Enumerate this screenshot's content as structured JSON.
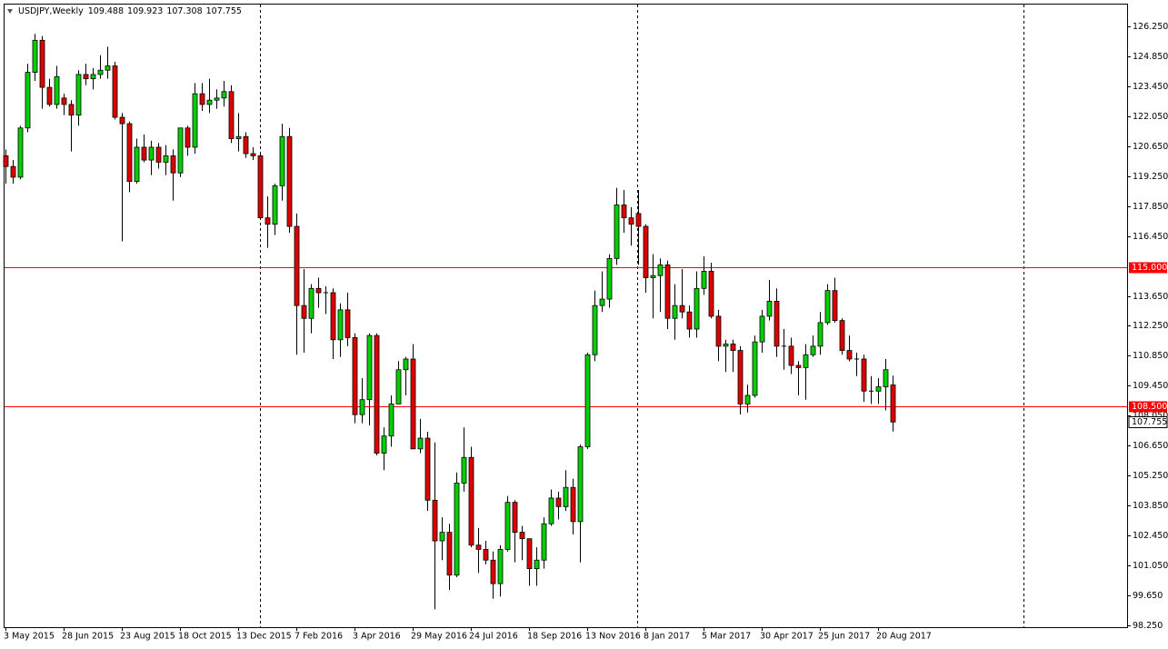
{
  "chart_data": {
    "type": "candlestick",
    "title": "USDJPY,Weekly",
    "categories": [
      "3 May 2015",
      null,
      null,
      null,
      null,
      null,
      null,
      null,
      "28 Jun 2015",
      null,
      null,
      null,
      null,
      null,
      null,
      null,
      "23 Aug 2015",
      null,
      null,
      null,
      null,
      null,
      null,
      null,
      "18 Oct 2015",
      null,
      null,
      null,
      null,
      null,
      null,
      null,
      "13 Dec 2015",
      null,
      null,
      null,
      null,
      null,
      null,
      null,
      "7 Feb 2016",
      null,
      null,
      null,
      null,
      null,
      null,
      null,
      "3 Apr 2016",
      null,
      null,
      null,
      null,
      null,
      null,
      null,
      "29 May 2016",
      null,
      null,
      null,
      null,
      null,
      null,
      null,
      "24 Jul 2016",
      null,
      null,
      null,
      null,
      null,
      null,
      null,
      "18 Sep 2016",
      null,
      null,
      null,
      null,
      null,
      null,
      null,
      "13 Nov 2016",
      null,
      null,
      null,
      null,
      null,
      null,
      null,
      "8 Jan 2017",
      null,
      null,
      null,
      null,
      null,
      null,
      null,
      "5 Mar 2017",
      null,
      null,
      null,
      null,
      null,
      null,
      null,
      "30 Apr 2017",
      null,
      null,
      null,
      null,
      null,
      null,
      null,
      "25 Jun 2017",
      null,
      null,
      null,
      null,
      null,
      null,
      null,
      "20 Aug 2017",
      null,
      null
    ],
    "open": [
      120.2,
      119.7,
      119.2,
      121.5,
      124.1,
      125.6,
      123.4,
      122.6,
      122.9,
      122.6,
      122.1,
      124.0,
      123.8,
      124.0,
      124.2,
      124.4,
      122.0,
      121.7,
      119.0,
      120.6,
      120.0,
      120.6,
      119.9,
      120.2,
      119.4,
      121.5,
      120.6,
      123.1,
      122.6,
      122.8,
      122.9,
      123.2,
      121.0,
      121.1,
      120.3,
      120.2,
      117.3,
      117.0,
      118.8,
      121.1,
      116.9,
      113.2,
      112.6,
      114.0,
      113.8,
      113.8,
      111.6,
      113.0,
      111.7,
      108.1,
      108.8,
      111.8,
      106.3,
      107.1,
      108.6,
      110.2,
      110.7,
      106.5,
      107.0,
      104.1,
      102.2,
      102.6,
      100.6,
      104.9,
      106.1,
      102.0,
      101.8,
      101.3,
      100.2,
      101.8,
      104.0,
      102.6,
      102.3,
      100.9,
      101.3,
      103.0,
      104.2,
      103.8,
      104.7,
      103.1,
      106.6,
      110.9,
      113.2,
      113.5,
      115.4,
      117.9,
      117.3,
      117.5,
      116.9,
      114.5,
      114.6,
      115.1,
      112.6,
      113.2,
      112.9,
      112.1,
      114.0,
      114.8,
      112.7,
      111.3,
      111.4,
      111.1,
      108.6,
      109.0,
      111.5,
      112.7,
      113.4,
      111.3,
      111.3,
      110.4,
      110.3,
      110.9,
      111.3,
      112.4,
      113.9,
      112.5,
      111.1,
      110.7,
      110.7,
      109.2,
      109.2,
      109.4,
      109.488
    ],
    "high": [
      120.5,
      120.0,
      121.6,
      124.5,
      125.9,
      125.8,
      123.8,
      124.4,
      123.1,
      122.8,
      124.2,
      124.5,
      124.3,
      124.9,
      125.3,
      124.6,
      122.2,
      121.8,
      121.0,
      121.2,
      120.9,
      120.8,
      120.7,
      120.5,
      121.5,
      121.6,
      123.6,
      123.6,
      123.8,
      123.3,
      123.7,
      123.5,
      122.2,
      121.3,
      120.6,
      120.3,
      118.3,
      118.9,
      121.7,
      121.5,
      117.5,
      114.9,
      114.2,
      114.5,
      114.1,
      114.0,
      113.3,
      113.8,
      111.9,
      109.8,
      111.9,
      111.9,
      107.5,
      109.0,
      110.6,
      110.8,
      111.4,
      107.9,
      107.3,
      106.8,
      103.3,
      103.0,
      105.4,
      107.5,
      106.6,
      102.8,
      102.2,
      101.7,
      102.0,
      104.3,
      104.1,
      102.9,
      102.3,
      101.9,
      103.3,
      104.6,
      104.5,
      105.5,
      105.1,
      106.7,
      111.0,
      113.9,
      114.8,
      115.6,
      118.7,
      118.6,
      117.8,
      118.6,
      117.0,
      115.6,
      115.4,
      115.3,
      114.2,
      114.9,
      113.2,
      114.8,
      115.5,
      115.2,
      113.0,
      111.6,
      111.6,
      111.3,
      109.5,
      111.8,
      113.0,
      114.4,
      114.0,
      112.1,
      111.7,
      110.6,
      111.4,
      111.8,
      112.9,
      114.2,
      114.5,
      112.6,
      111.8,
      111.0,
      110.9,
      109.9,
      109.8,
      110.7,
      109.923
    ],
    "low": [
      118.9,
      118.9,
      119.1,
      121.3,
      123.7,
      122.4,
      122.5,
      122.4,
      122.1,
      120.4,
      121.6,
      123.5,
      123.3,
      123.8,
      123.8,
      121.9,
      116.2,
      118.5,
      118.9,
      119.9,
      119.3,
      119.6,
      119.3,
      118.1,
      119.2,
      120.2,
      120.3,
      122.3,
      122.2,
      122.4,
      122.5,
      120.8,
      120.4,
      120.1,
      120.0,
      117.3,
      115.9,
      116.5,
      118.1,
      116.6,
      110.9,
      111.0,
      111.9,
      113.1,
      112.8,
      110.7,
      110.8,
      111.3,
      107.7,
      107.7,
      107.6,
      106.2,
      105.5,
      106.6,
      108.6,
      109.0,
      106.5,
      106.3,
      103.6,
      99.0,
      101.3,
      99.9,
      100.5,
      104.5,
      101.9,
      100.7,
      101.1,
      99.5,
      99.6,
      101.7,
      101.2,
      101.3,
      100.1,
      100.1,
      100.9,
      102.9,
      103.2,
      103.6,
      102.5,
      101.2,
      106.5,
      110.6,
      112.9,
      113.1,
      115.1,
      116.6,
      116.0,
      115.1,
      113.8,
      112.6,
      112.9,
      112.1,
      111.6,
      112.6,
      111.7,
      111.7,
      113.7,
      112.6,
      110.6,
      110.1,
      110.1,
      108.1,
      108.2,
      108.9,
      111.0,
      112.5,
      110.8,
      110.2,
      110.0,
      109.0,
      108.8,
      110.8,
      110.9,
      112.3,
      112.4,
      110.9,
      110.6,
      109.9,
      108.7,
      108.6,
      108.6,
      108.3,
      107.308
    ],
    "close": [
      119.7,
      119.2,
      121.5,
      124.1,
      125.6,
      123.4,
      122.6,
      123.9,
      122.6,
      122.1,
      124.0,
      123.8,
      124.0,
      124.2,
      124.4,
      122.0,
      121.7,
      119.0,
      120.6,
      120.0,
      120.6,
      119.9,
      120.2,
      119.4,
      121.5,
      120.6,
      123.1,
      122.6,
      122.8,
      122.9,
      123.2,
      121.0,
      121.1,
      120.3,
      120.2,
      117.3,
      117.0,
      118.8,
      121.1,
      116.9,
      113.2,
      112.6,
      114.0,
      113.8,
      113.8,
      111.6,
      113.0,
      111.7,
      108.1,
      108.8,
      111.8,
      106.3,
      107.1,
      108.6,
      110.2,
      110.7,
      106.5,
      107.0,
      104.1,
      102.2,
      102.6,
      100.6,
      104.9,
      106.1,
      102.0,
      101.8,
      101.3,
      100.2,
      101.8,
      104.0,
      102.6,
      102.3,
      100.9,
      101.3,
      103.0,
      104.2,
      103.8,
      104.7,
      103.1,
      106.6,
      110.9,
      113.2,
      113.5,
      115.4,
      117.9,
      117.3,
      117.0,
      116.9,
      114.5,
      114.6,
      115.1,
      112.6,
      113.2,
      112.9,
      112.1,
      114.0,
      114.8,
      112.7,
      111.3,
      111.4,
      111.1,
      108.6,
      109.0,
      111.5,
      112.7,
      113.4,
      111.3,
      111.3,
      110.4,
      110.3,
      110.9,
      111.3,
      112.4,
      113.9,
      112.5,
      111.1,
      110.7,
      110.7,
      109.2,
      109.2,
      109.4,
      110.2,
      107.755
    ],
    "up_color": "#00d000",
    "down_color": "#dd0000",
    "wick_color": "#000000",
    "ylim": [
      98.165,
      127.312
    ],
    "yticks": [
      {
        "value": 126.25,
        "label": "126.250"
      },
      {
        "value": 124.85,
        "label": "124.850"
      },
      {
        "value": 123.45,
        "label": "123.450"
      },
      {
        "value": 122.05,
        "label": "122.050"
      },
      {
        "value": 120.65,
        "label": "120.650"
      },
      {
        "value": 119.25,
        "label": "119.250"
      },
      {
        "value": 117.85,
        "label": "117.850"
      },
      {
        "value": 116.45,
        "label": "116.450"
      },
      {
        "value": 113.65,
        "label": "113.650"
      },
      {
        "value": 112.25,
        "label": "112.250"
      },
      {
        "value": 110.85,
        "label": "110.850"
      },
      {
        "value": 109.45,
        "label": "109.450"
      },
      {
        "value": 108.05,
        "label": "108.050"
      },
      {
        "value": 106.65,
        "label": "106.650"
      },
      {
        "value": 105.25,
        "label": "105.250"
      },
      {
        "value": 103.85,
        "label": "103.850"
      },
      {
        "value": 102.45,
        "label": "102.450"
      },
      {
        "value": 101.05,
        "label": "101.050"
      },
      {
        "value": 99.65,
        "label": "99.650"
      },
      {
        "value": 98.25,
        "label": "98.250"
      }
    ],
    "hlines": [
      {
        "value": 115,
        "label": "115.000"
      },
      {
        "value": 108.5,
        "label": "108.500"
      }
    ],
    "hline_color": "#ff0000",
    "grid": false
  }
}
